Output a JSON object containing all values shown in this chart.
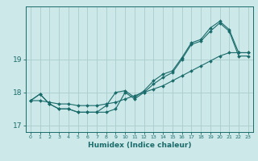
{
  "xlabel": "Humidex (Indice chaleur)",
  "bg_color": "#cce8e8",
  "grid_color": "#aacccc",
  "line_color": "#1a6b6b",
  "ylim": [
    16.8,
    20.6
  ],
  "yticks": [
    17,
    18,
    19
  ],
  "x_ticks": [
    0,
    1,
    2,
    3,
    4,
    5,
    6,
    7,
    8,
    9,
    10,
    11,
    12,
    13,
    14,
    15,
    16,
    17,
    18,
    19,
    20,
    21,
    22,
    23
  ],
  "series1": [
    17.75,
    17.95,
    17.65,
    17.5,
    17.5,
    17.4,
    17.4,
    17.4,
    17.6,
    18.0,
    18.05,
    17.85,
    18.05,
    18.35,
    18.55,
    18.65,
    19.05,
    19.5,
    19.6,
    19.95,
    20.15,
    19.9,
    19.2,
    19.2
  ],
  "series2": [
    17.75,
    17.95,
    17.65,
    17.5,
    17.5,
    17.4,
    17.4,
    17.4,
    17.4,
    17.5,
    18.0,
    17.8,
    18.0,
    18.25,
    18.45,
    18.6,
    19.0,
    19.45,
    19.55,
    19.85,
    20.1,
    19.85,
    19.1,
    19.1
  ],
  "series3": [
    17.75,
    17.75,
    17.7,
    17.65,
    17.65,
    17.6,
    17.6,
    17.6,
    17.65,
    17.7,
    17.8,
    17.9,
    18.0,
    18.1,
    18.2,
    18.35,
    18.5,
    18.65,
    18.8,
    18.95,
    19.1,
    19.2,
    19.2,
    19.2
  ]
}
